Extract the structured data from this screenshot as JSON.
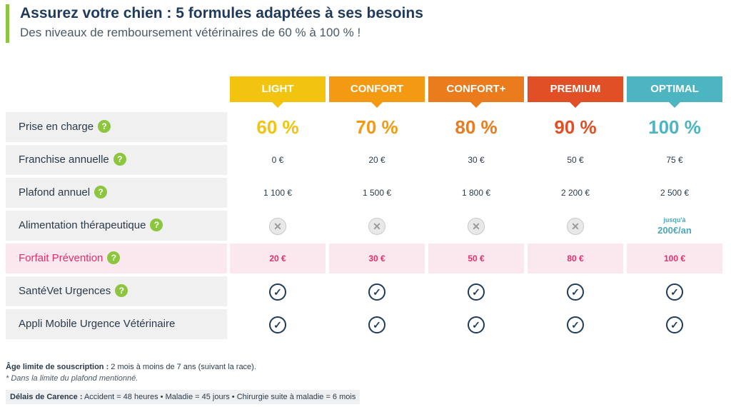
{
  "header": {
    "title": "Assurez votre chien : 5 formules adaptées à ses besoins",
    "subtitle": "Des niveaux de remboursement vétérinaires de 60 % à 100 % !"
  },
  "plans": [
    {
      "name": "LIGHT",
      "color": "#f2c40f"
    },
    {
      "name": "CONFORT",
      "color": "#f39a12"
    },
    {
      "name": "CONFORT+",
      "color": "#ea7c1e"
    },
    {
      "name": "PREMIUM",
      "color": "#e04f26"
    },
    {
      "name": "OPTIMAL",
      "color": "#4db5c2"
    }
  ],
  "rows": {
    "prise": {
      "label": "Prise en charge",
      "help_icon": "question-icon",
      "values": [
        "60 %",
        "70 %",
        "80 %",
        "90 %",
        "100 %"
      ]
    },
    "franchise": {
      "label": "Franchise annuelle",
      "help_icon": "question-icon",
      "values": [
        "0 €",
        "20 €",
        "30 €",
        "50 €",
        "75 €"
      ]
    },
    "plafond": {
      "label": "Plafond annuel",
      "help_icon": "question-icon",
      "values": [
        "1 100 €",
        "1 500 €",
        "1 800 €",
        "2 200 €",
        "2 500 €"
      ]
    },
    "alimentation": {
      "label": "Alimentation thérapeutique",
      "help_icon": "question-icon",
      "optimal_small": "jusqu'à",
      "optimal_big": "200€/an",
      "icon": "x-circle-icon"
    },
    "prevention": {
      "label": "Forfait Prévention",
      "help_icon": "question-icon",
      "values": [
        "20 €",
        "30 €",
        "50 €",
        "80 €",
        "100 €"
      ]
    },
    "urgences": {
      "label": "SantéVet Urgences",
      "help_icon": "question-icon",
      "icon": "check-circle-icon"
    },
    "appli": {
      "label": "Appli Mobile Urgence Vétérinaire",
      "icon": "check-circle-icon"
    }
  },
  "footer": {
    "age_label": "Âge limite de souscription :",
    "age_text": " 2 mois à moins de 7 ans (suivant la race).",
    "note": "* Dans la limite du plafond mentionné.",
    "carence_label": "Délais de Carence :",
    "carence_text": " Accident = 48 heures • Maladie = 45 jours • Chirurgie suite à maladie = 6 mois"
  },
  "colors": {
    "accent_green": "#8cc63f",
    "navy": "#1f3a5a",
    "prevention_pink": "#e0306e",
    "prevention_bg": "#fbe7ee"
  }
}
